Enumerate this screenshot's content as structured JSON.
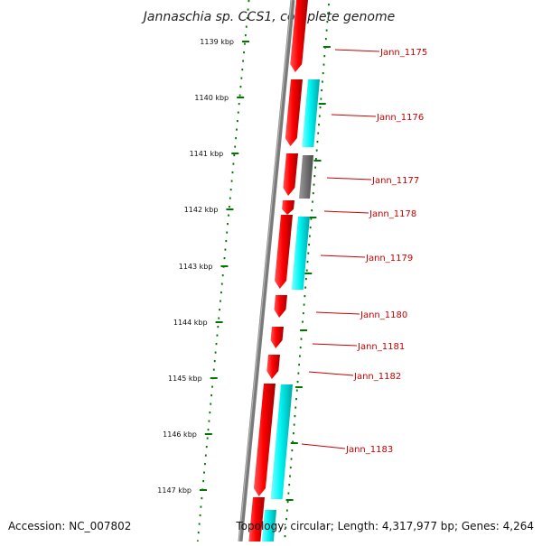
{
  "title": "Jannaschia sp. CCS1, complete genome",
  "accession": "Accession: NC_007802",
  "topology": "Topology: circular; Length: 4,317,977 bp; Genes: 4,264",
  "colors": {
    "backbone": "#777777",
    "forward_cds": "#ff0000",
    "rna_feature": "#00ffff",
    "other_feature": "#777777",
    "ruler": "#007700",
    "gene_label": "#cc0000"
  },
  "ruler_ticks": [
    "1139 kbp",
    "1140 kbp",
    "1141 kbp",
    "1142 kbp",
    "1143 kbp",
    "1144 kbp",
    "1145 kbp",
    "1146 kbp",
    "1147 kbp"
  ],
  "genes": [
    {
      "label": "Jann_1175",
      "strand": "+",
      "type": "CDS"
    },
    {
      "label": "Jann_1176",
      "strand": "+",
      "type": "CDS"
    },
    {
      "label": "Jann_1177",
      "strand": "+",
      "type": "CDS"
    },
    {
      "label": "Jann_1178",
      "strand": "+",
      "type": "CDS"
    },
    {
      "label": "Jann_1179",
      "strand": "+",
      "type": "CDS"
    },
    {
      "label": "Jann_1180",
      "strand": "+",
      "type": "CDS"
    },
    {
      "label": "Jann_1181",
      "strand": "+",
      "type": "CDS"
    },
    {
      "label": "Jann_1182",
      "strand": "+",
      "type": "CDS"
    },
    {
      "label": "Jann_1183",
      "strand": "+",
      "type": "CDS"
    }
  ]
}
